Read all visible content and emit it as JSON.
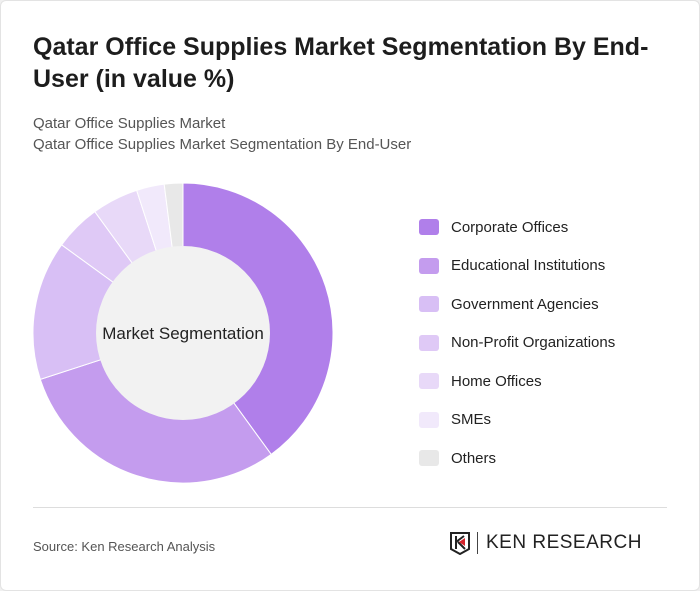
{
  "title": "Qatar Office Supplies Market Segmentation By End-User (in value %)",
  "subtitle1": "Qatar Office Supplies Market",
  "subtitle2": "Qatar Office Supplies Market Segmentation By End-User",
  "source": "Source: Ken Research Analysis",
  "logo_text": "KEN RESEARCH",
  "chart_data": {
    "type": "pie",
    "variant": "donut",
    "center_label": "Market Segmentation",
    "legend_position": "right",
    "categories": [
      "Corporate Offices",
      "Educational Institutions",
      "Government Agencies",
      "Non-Profit Organizations",
      "Home Offices",
      "SMEs",
      "Others"
    ],
    "values": [
      40,
      30,
      15,
      5,
      5,
      3,
      2
    ],
    "colors": [
      "#b07fea",
      "#c49cee",
      "#d8bff5",
      "#dfc9f6",
      "#e8d9f8",
      "#f1e9fb",
      "#e8e8e8"
    ]
  }
}
